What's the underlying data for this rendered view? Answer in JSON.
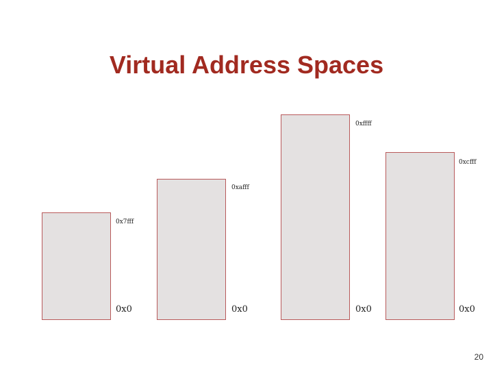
{
  "slide": {
    "title": "Virtual Address Spaces",
    "page_number": "20"
  },
  "address_spaces": [
    {
      "high_label": "0x7fff",
      "low_label": "0x0"
    },
    {
      "high_label": "0xafff",
      "low_label": "0x0"
    },
    {
      "high_label": "0xffff",
      "low_label": "0x0"
    },
    {
      "high_label": "0xcfff",
      "low_label": "0x0"
    }
  ],
  "colors": {
    "title": "#a12a20",
    "box_fill": "#e4e1e1",
    "box_border": "#b8595a"
  }
}
